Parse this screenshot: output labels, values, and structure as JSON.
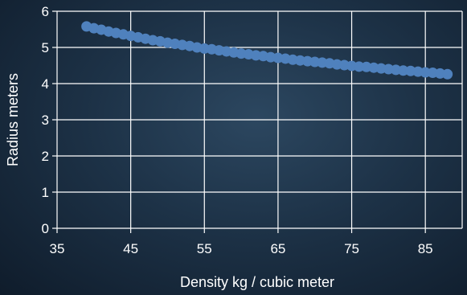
{
  "chart_data": {
    "type": "scatter",
    "title": "",
    "xlabel": "Density kg / cubic meter",
    "ylabel": "Radius meters",
    "xlim": [
      35,
      90
    ],
    "ylim": [
      0,
      6
    ],
    "xticks": [
      35,
      45,
      55,
      65,
      75,
      85
    ],
    "yticks": [
      0,
      1,
      2,
      3,
      4,
      5,
      6
    ],
    "grid": true,
    "legend": "none",
    "colors": {
      "marker": "#4f81bd",
      "grid": "#ffffff",
      "text": "#ffffff",
      "background": "#1d3247"
    },
    "series": [
      {
        "x": [
          39,
          40,
          41,
          42,
          43,
          44,
          45,
          46,
          47,
          48,
          49,
          50,
          51,
          52,
          53,
          54,
          55,
          56,
          57,
          58,
          59,
          60,
          61,
          62,
          63,
          64,
          65,
          66,
          67,
          68,
          69,
          70,
          71,
          72,
          73,
          74,
          75,
          76,
          77,
          78,
          79,
          80,
          81,
          82,
          83,
          84,
          85,
          86,
          87,
          88
        ],
        "y": [
          5.58,
          5.53,
          5.49,
          5.44,
          5.4,
          5.36,
          5.32,
          5.28,
          5.24,
          5.2,
          5.17,
          5.13,
          5.1,
          5.07,
          5.04,
          5.0,
          4.97,
          4.95,
          4.92,
          4.89,
          4.86,
          4.83,
          4.81,
          4.78,
          4.76,
          4.73,
          4.71,
          4.69,
          4.66,
          4.64,
          4.62,
          4.6,
          4.58,
          4.56,
          4.53,
          4.51,
          4.49,
          4.47,
          4.46,
          4.44,
          4.42,
          4.4,
          4.38,
          4.36,
          4.35,
          4.33,
          4.31,
          4.3,
          4.28,
          4.26
        ]
      }
    ]
  }
}
